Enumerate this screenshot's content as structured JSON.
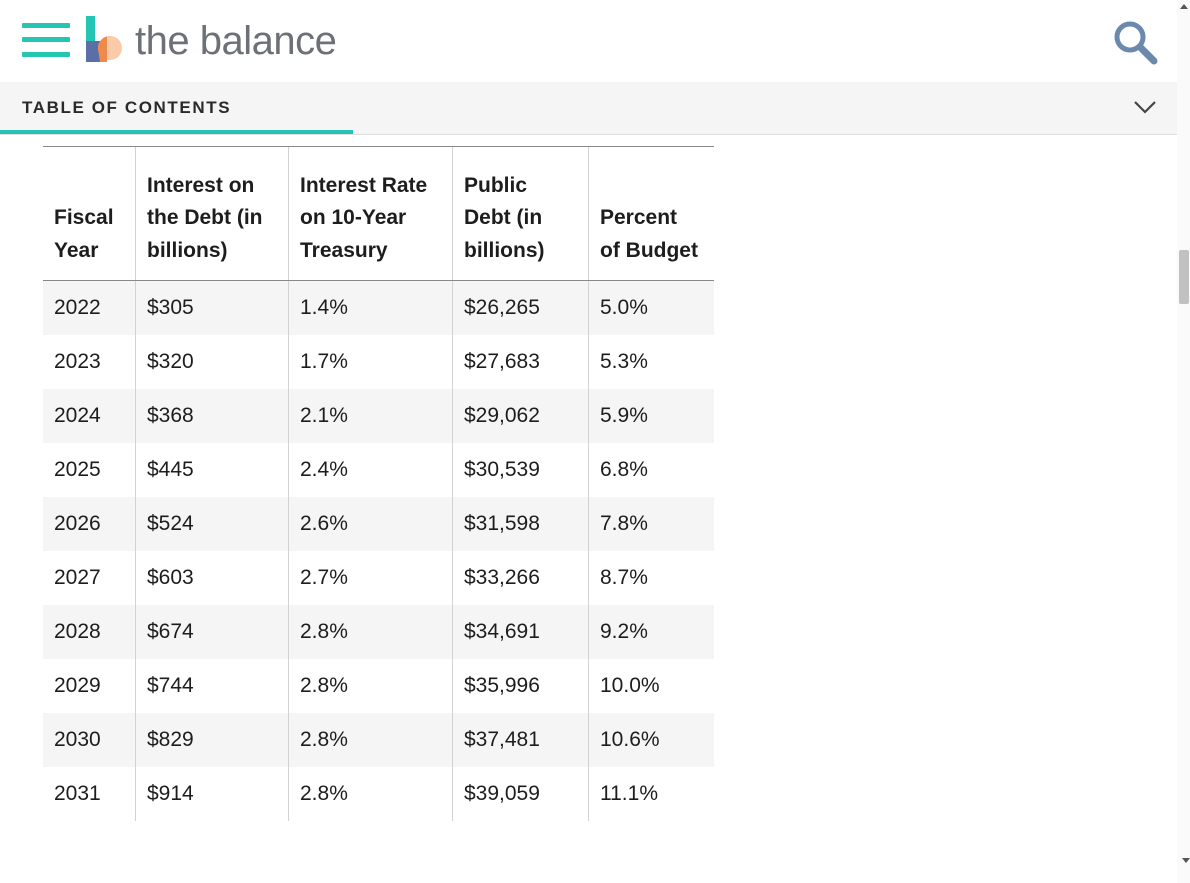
{
  "header": {
    "brand": "the balance",
    "accent_color": "#24c6b3",
    "icons": [
      "hamburger-menu-icon",
      "brand-logo",
      "search-icon"
    ]
  },
  "toc": {
    "label": "TABLE OF CONTENTS",
    "icon": "chevron-down-icon"
  },
  "table": {
    "columns": [
      [
        "Fiscal",
        "Year"
      ],
      [
        "Interest on",
        "the Debt (in",
        "billions)"
      ],
      [
        "Interest Rate",
        "on 10-Year",
        "Treasury"
      ],
      [
        "Public",
        "Debt (in",
        "billions)"
      ],
      [
        "Percent",
        "of Budget"
      ]
    ],
    "rows": [
      [
        "2022",
        "$305",
        "1.4%",
        "$26,265",
        "5.0%"
      ],
      [
        "2023",
        "$320",
        "1.7%",
        "$27,683",
        "5.3%"
      ],
      [
        "2024",
        "$368",
        "2.1%",
        "$29,062",
        "5.9%"
      ],
      [
        "2025",
        "$445",
        "2.4%",
        "$30,539",
        "6.8%"
      ],
      [
        "2026",
        "$524",
        "2.6%",
        "$31,598",
        "7.8%"
      ],
      [
        "2027",
        "$603",
        "2.7%",
        "$33,266",
        "8.7%"
      ],
      [
        "2028",
        "$674",
        "2.8%",
        "$34,691",
        "9.2%"
      ],
      [
        "2029",
        "$744",
        "2.8%",
        "$35,996",
        "10.0%"
      ],
      [
        "2030",
        "$829",
        "2.8%",
        "$37,481",
        "10.6%"
      ],
      [
        "2031",
        "$914",
        "2.8%",
        "$39,059",
        "11.1%"
      ]
    ]
  }
}
